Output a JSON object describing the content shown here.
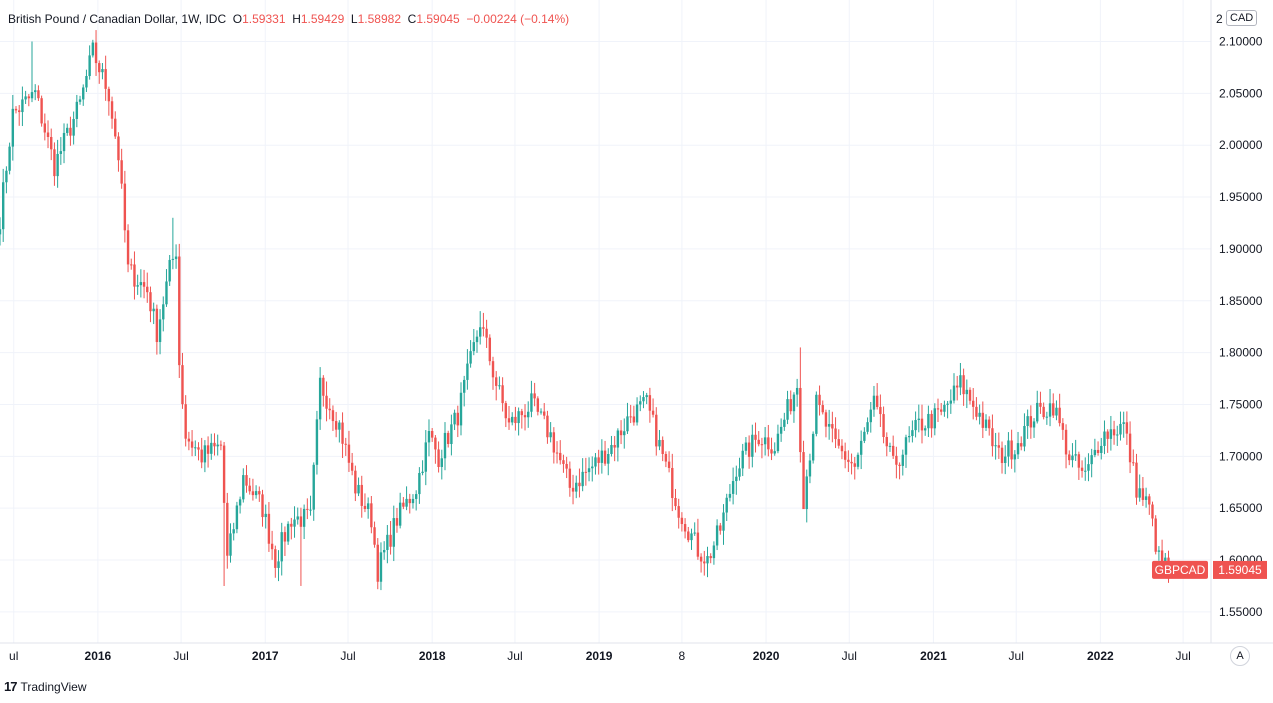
{
  "header": {
    "symbol_desc": "British Pound / Canadian Dollar, 1W, IDC",
    "open_label": "O",
    "open_value": "1.59331",
    "high_label": "H",
    "high_value": "1.59429",
    "low_label": "L",
    "low_value": "1.58982",
    "close_label": "C",
    "close_value": "1.59045",
    "change": "−0.00224 (−0.14%)"
  },
  "price_scale": {
    "currency": "CAD",
    "top_partial": "2"
  },
  "last_price": {
    "symbol": "GBPCAD",
    "value": "1.59045"
  },
  "auto_button": "A",
  "brand": {
    "name": "TradingView",
    "logo_mark": "17"
  },
  "colors": {
    "up": "#26a69a",
    "down": "#ef5350",
    "grid": "#f0f3fa",
    "text": "#131722"
  },
  "chart_data": {
    "type": "candlestick",
    "interval": "1W",
    "x_start": "2015-06-01",
    "x_end": "2022-06-06",
    "x_view_end": "2022-08-20",
    "ylim": [
      1.52,
      2.14
    ],
    "y_ticks": [
      "1.55000",
      "1.60000",
      "1.65000",
      "1.70000",
      "1.75000",
      "1.80000",
      "1.85000",
      "1.90000",
      "1.95000",
      "2.00000",
      "2.05000",
      "2.10000"
    ],
    "x_ticks": [
      {
        "date": "2015-07-01",
        "label": "ul"
      },
      {
        "date": "2016-01-01",
        "label": "2016"
      },
      {
        "date": "2016-07-01",
        "label": "Jul"
      },
      {
        "date": "2017-01-01",
        "label": "2017"
      },
      {
        "date": "2017-07-01",
        "label": "Jul"
      },
      {
        "date": "2018-01-01",
        "label": "2018"
      },
      {
        "date": "2018-07-01",
        "label": "Jul"
      },
      {
        "date": "2019-01-01",
        "label": "2019"
      },
      {
        "date": "2019-07-01",
        "label": "8"
      },
      {
        "date": "2020-01-01",
        "label": "2020"
      },
      {
        "date": "2020-07-01",
        "label": "Jul"
      },
      {
        "date": "2021-01-01",
        "label": "2021"
      },
      {
        "date": "2021-07-01",
        "label": "Jul"
      },
      {
        "date": "2022-01-01",
        "label": "2022"
      },
      {
        "date": "2022-07-01",
        "label": "Jul"
      }
    ],
    "grid": true,
    "close_path": [
      [
        "2015-06-01",
        1.93
      ],
      [
        "2015-06-29",
        2.03
      ],
      [
        "2015-08-17",
        2.05
      ],
      [
        "2015-09-28",
        1.98
      ],
      [
        "2015-11-23",
        2.04
      ],
      [
        "2015-12-21",
        2.09
      ],
      [
        "2016-01-25",
        2.05
      ],
      [
        "2016-02-15",
        1.99
      ],
      [
        "2016-03-07",
        1.88
      ],
      [
        "2016-04-18",
        1.86
      ],
      [
        "2016-05-09",
        1.82
      ],
      [
        "2016-06-06",
        1.88
      ],
      [
        "2016-06-20",
        1.9
      ],
      [
        "2016-06-27",
        1.79
      ],
      [
        "2016-07-11",
        1.72
      ],
      [
        "2016-08-15",
        1.7
      ],
      [
        "2016-09-26",
        1.71
      ],
      [
        "2016-10-10",
        1.6
      ],
      [
        "2016-11-14",
        1.68
      ],
      [
        "2016-12-26",
        1.65
      ],
      [
        "2017-01-23",
        1.6
      ],
      [
        "2017-02-27",
        1.64
      ],
      [
        "2017-04-10",
        1.64
      ],
      [
        "2017-05-01",
        1.77
      ],
      [
        "2017-06-12",
        1.73
      ],
      [
        "2017-07-17",
        1.67
      ],
      [
        "2017-08-21",
        1.64
      ],
      [
        "2017-09-04",
        1.59
      ],
      [
        "2017-10-16",
        1.64
      ],
      [
        "2017-11-27",
        1.67
      ],
      [
        "2017-12-25",
        1.72
      ],
      [
        "2018-01-15",
        1.7
      ],
      [
        "2018-02-26",
        1.74
      ],
      [
        "2018-04-16",
        1.83
      ],
      [
        "2018-05-21",
        1.77
      ],
      [
        "2018-06-18",
        1.73
      ],
      [
        "2018-08-06",
        1.75
      ],
      [
        "2018-09-17",
        1.72
      ],
      [
        "2018-10-29",
        1.67
      ],
      [
        "2018-12-17",
        1.69
      ],
      [
        "2019-01-28",
        1.71
      ],
      [
        "2019-03-11",
        1.74
      ],
      [
        "2019-04-15",
        1.75
      ],
      [
        "2019-05-20",
        1.7
      ],
      [
        "2019-06-24",
        1.65
      ],
      [
        "2019-08-05",
        1.61
      ],
      [
        "2019-08-26",
        1.6
      ],
      [
        "2019-09-23",
        1.63
      ],
      [
        "2019-10-28",
        1.69
      ],
      [
        "2019-12-16",
        1.72
      ],
      [
        "2020-01-20",
        1.71
      ],
      [
        "2020-03-09",
        1.77
      ],
      [
        "2020-03-23",
        1.66
      ],
      [
        "2020-04-20",
        1.75
      ],
      [
        "2020-06-01",
        1.71
      ],
      [
        "2020-07-13",
        1.69
      ],
      [
        "2020-08-24",
        1.75
      ],
      [
        "2020-10-05",
        1.69
      ],
      [
        "2020-11-30",
        1.73
      ],
      [
        "2021-01-18",
        1.74
      ],
      [
        "2021-03-01",
        1.77
      ],
      [
        "2021-04-12",
        1.74
      ],
      [
        "2021-05-24",
        1.7
      ],
      [
        "2021-06-28",
        1.71
      ],
      [
        "2021-08-09",
        1.74
      ],
      [
        "2021-09-20",
        1.75
      ],
      [
        "2021-10-25",
        1.7
      ],
      [
        "2021-11-29",
        1.68
      ],
      [
        "2022-01-03",
        1.72
      ],
      [
        "2022-02-21",
        1.73
      ],
      [
        "2022-03-21",
        1.67
      ],
      [
        "2022-04-18",
        1.65
      ],
      [
        "2022-05-09",
        1.6
      ],
      [
        "2022-06-06",
        1.59045
      ]
    ],
    "wick_outliers": [
      {
        "date": "2015-08-10",
        "high": 2.1
      },
      {
        "date": "2016-06-13",
        "high": 1.93
      },
      {
        "date": "2016-10-03",
        "low": 1.575
      },
      {
        "date": "2017-03-20",
        "low": 1.575
      },
      {
        "date": "2018-04-16",
        "high": 1.84
      },
      {
        "date": "2019-08-19",
        "low": 1.585
      },
      {
        "date": "2020-03-16",
        "high": 1.805
      },
      {
        "date": "2020-03-23",
        "low": 1.655
      },
      {
        "date": "2021-03-01",
        "high": 1.79
      },
      {
        "date": "2022-05-30",
        "low": 1.578
      }
    ],
    "last_candle": {
      "open": 1.59331,
      "high": 1.59429,
      "low": 1.58982,
      "close": 1.59045
    }
  }
}
